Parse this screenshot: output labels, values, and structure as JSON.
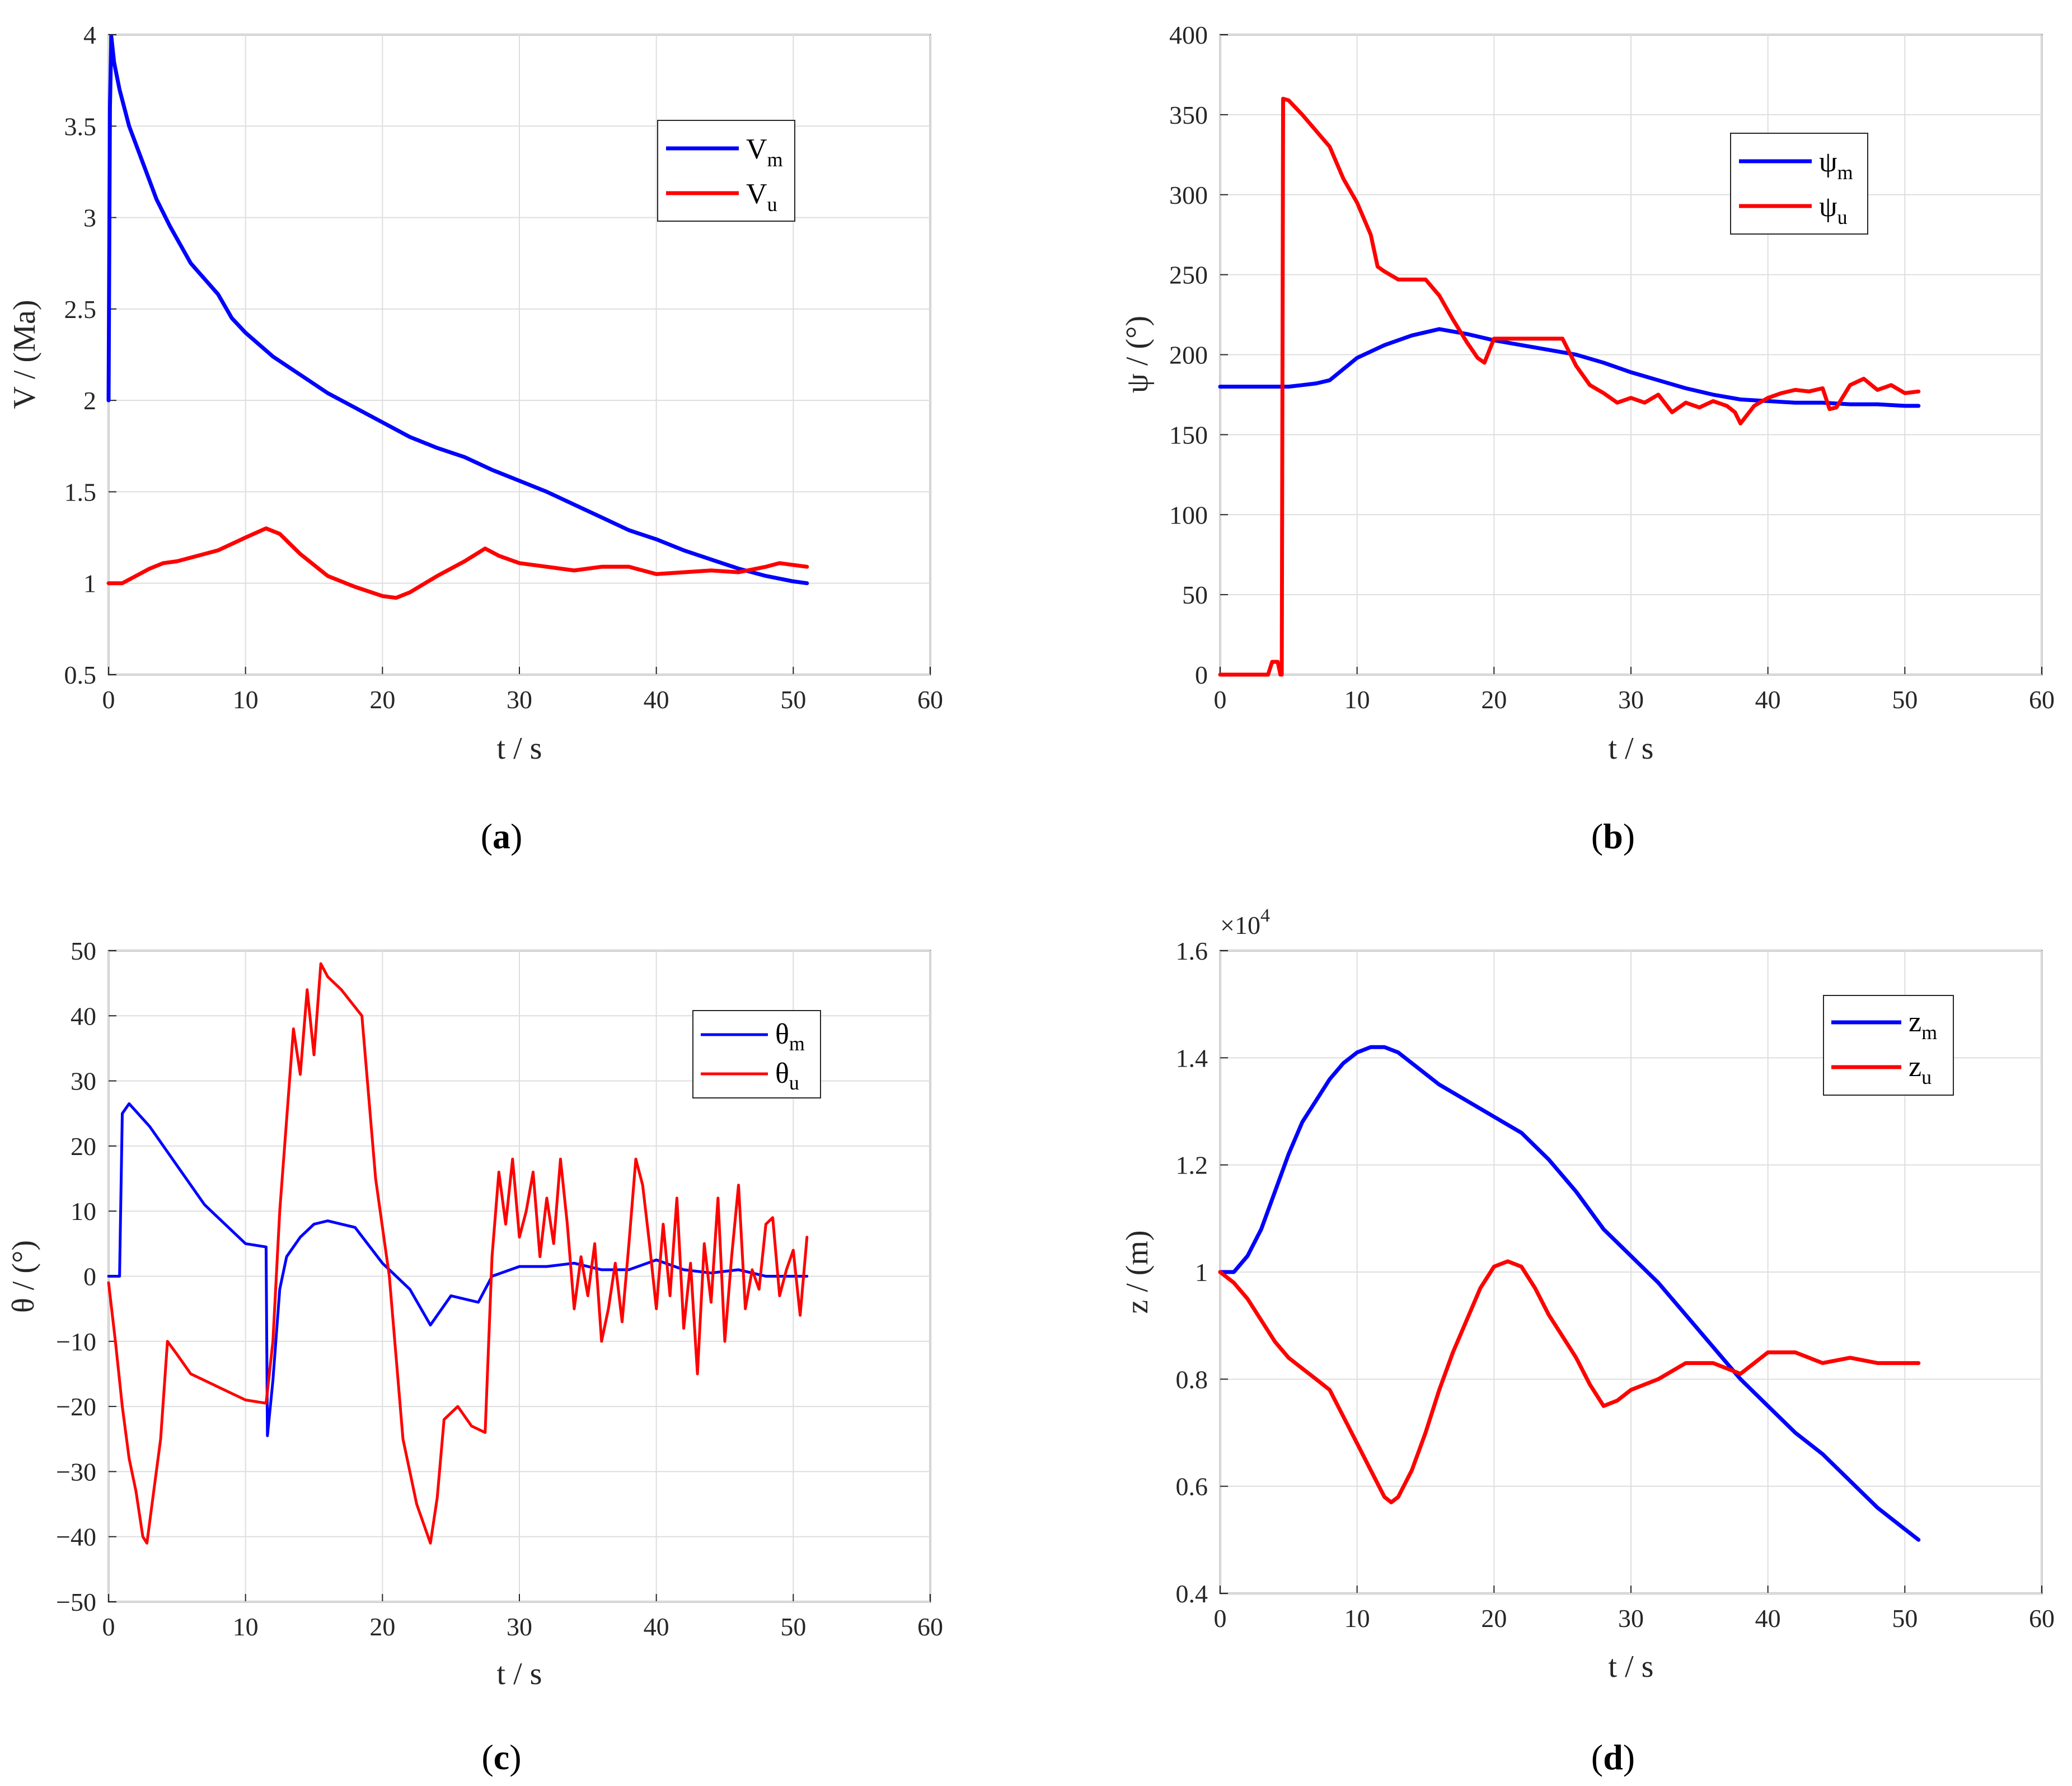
{
  "chart_data": [
    {
      "id": "a",
      "type": "line",
      "caption": "a",
      "xlabel": "t / s",
      "ylabel": "V / (Ma)",
      "xlim": [
        0,
        60
      ],
      "ylim": [
        0.5,
        4
      ],
      "xticks": [
        "0",
        "10",
        "20",
        "30",
        "40",
        "50",
        "60"
      ],
      "yticks": [
        "0.5",
        "1",
        "1.5",
        "2",
        "2.5",
        "3",
        "3.5",
        "4"
      ],
      "grid": true,
      "legend_position": "top-right",
      "series": [
        {
          "name": "V",
          "sub": "m",
          "color": "#0000ff",
          "x": [
            0,
            0.1,
            0.2,
            0.4,
            0.8,
            1.5,
            2.5,
            3.5,
            4.5,
            6,
            8,
            9,
            10,
            12,
            14,
            16,
            18,
            20,
            22,
            24,
            26,
            28,
            30,
            32,
            34,
            36,
            38,
            40,
            42,
            44,
            46,
            48,
            50,
            51
          ],
          "y": [
            2.0,
            3.6,
            3.99,
            3.85,
            3.7,
            3.5,
            3.3,
            3.1,
            2.95,
            2.75,
            2.58,
            2.45,
            2.37,
            2.24,
            2.14,
            2.04,
            1.96,
            1.88,
            1.8,
            1.74,
            1.69,
            1.62,
            1.56,
            1.5,
            1.43,
            1.36,
            1.29,
            1.24,
            1.18,
            1.13,
            1.08,
            1.04,
            1.01,
            1.0
          ]
        },
        {
          "name": "V",
          "sub": "u",
          "color": "#ff0000",
          "x": [
            0,
            1,
            2,
            3,
            4,
            5,
            6,
            8,
            10,
            11.5,
            12.5,
            14,
            16,
            18,
            20,
            21,
            22,
            24,
            26,
            27.5,
            28.5,
            30,
            32,
            34,
            36,
            38,
            40,
            42,
            44,
            46,
            48,
            49,
            51
          ],
          "y": [
            1.0,
            1.0,
            1.04,
            1.08,
            1.11,
            1.12,
            1.14,
            1.18,
            1.25,
            1.3,
            1.27,
            1.16,
            1.04,
            0.98,
            0.93,
            0.92,
            0.95,
            1.04,
            1.12,
            1.19,
            1.15,
            1.11,
            1.09,
            1.07,
            1.09,
            1.09,
            1.05,
            1.06,
            1.07,
            1.06,
            1.09,
            1.11,
            1.09
          ]
        }
      ]
    },
    {
      "id": "b",
      "type": "line",
      "caption": "b",
      "xlabel": "t / s",
      "ylabel": "ψ / (°)",
      "xlim": [
        0,
        60
      ],
      "ylim": [
        0,
        400
      ],
      "xticks": [
        "0",
        "10",
        "20",
        "30",
        "40",
        "50",
        "60"
      ],
      "yticks": [
        "0",
        "50",
        "100",
        "150",
        "200",
        "250",
        "300",
        "350",
        "400"
      ],
      "grid": true,
      "legend_position": "top-right",
      "series": [
        {
          "name": "ψ",
          "sub": "m",
          "color": "#0000ff",
          "x": [
            0,
            2,
            4,
            5,
            6,
            7,
            8,
            9,
            10,
            12,
            14,
            16,
            18,
            20,
            22,
            24,
            26,
            28,
            30,
            32,
            34,
            36,
            38,
            40,
            42,
            44,
            46,
            48,
            50,
            51
          ],
          "y": [
            180,
            180,
            180,
            180,
            181,
            182,
            184,
            191,
            198,
            206,
            212,
            216,
            213,
            209,
            206,
            203,
            200,
            195,
            189,
            184,
            179,
            175,
            172,
            171,
            170,
            170,
            169,
            169,
            168,
            168
          ]
        },
        {
          "name": "ψ",
          "sub": "u",
          "color": "#ff0000",
          "x": [
            0,
            3.5,
            3.8,
            4.2,
            4.4,
            4.5,
            4.6,
            5,
            6,
            7,
            8,
            9,
            10,
            11,
            11.5,
            12,
            13,
            14,
            15,
            16,
            17,
            18,
            18.8,
            19.3,
            20,
            22,
            24,
            25,
            26,
            27,
            28,
            29,
            30,
            31,
            32,
            33,
            34,
            35,
            36,
            37,
            37.6,
            38,
            39,
            40,
            41,
            42,
            43,
            44,
            44.5,
            45,
            46,
            47,
            48,
            49,
            50,
            51
          ],
          "y": [
            0,
            0,
            8,
            8,
            0,
            0,
            360,
            359,
            350,
            340,
            330,
            310,
            295,
            275,
            255,
            252,
            247,
            247,
            247,
            237,
            222,
            208,
            198,
            195,
            210,
            210,
            210,
            210,
            193,
            181,
            176,
            170,
            173,
            170,
            175,
            164,
            170,
            167,
            171,
            168,
            164,
            157,
            168,
            173,
            176,
            178,
            177,
            179,
            166,
            167,
            181,
            185,
            178,
            181,
            176,
            177
          ]
        }
      ]
    },
    {
      "id": "c",
      "type": "line",
      "caption": "c",
      "xlabel": "t / s",
      "ylabel": "θ / (°)",
      "xlim": [
        0,
        60
      ],
      "ylim": [
        -50,
        50
      ],
      "xticks": [
        "0",
        "10",
        "20",
        "30",
        "40",
        "50",
        "60"
      ],
      "yticks": [
        "−50",
        "−40",
        "−30",
        "−20",
        "−10",
        "0",
        "10",
        "20",
        "30",
        "40",
        "50"
      ],
      "grid": true,
      "legend_position": "top-right",
      "series": [
        {
          "name": "θ",
          "sub": "m",
          "color": "#0000ff",
          "x": [
            0,
            0.5,
            0.8,
            1,
            1.5,
            3,
            5,
            7,
            9,
            10,
            11.5,
            11.6,
            12,
            12.5,
            13,
            14,
            15,
            16,
            18,
            20,
            22,
            23.5,
            25,
            27,
            28,
            30,
            32,
            34,
            36,
            38,
            40,
            42,
            44,
            46,
            48,
            50,
            51
          ],
          "y": [
            0,
            0,
            0,
            25,
            26.5,
            23,
            17,
            11,
            7,
            5,
            4.5,
            -24.5,
            -16,
            -2,
            3,
            6,
            8,
            8.5,
            7.5,
            2,
            -2,
            -7.5,
            -3,
            -4,
            0,
            1.5,
            1.5,
            2,
            1,
            1,
            2.5,
            1,
            0.5,
            1,
            0,
            0,
            0
          ]
        },
        {
          "name": "θ",
          "sub": "u",
          "color": "#ff0000",
          "x": [
            0,
            0.5,
            1,
            1.5,
            2,
            2.5,
            2.8,
            3.3,
            3.8,
            4.3,
            5,
            6,
            8,
            10,
            11.5,
            12,
            12.5,
            13.5,
            14,
            14.5,
            15,
            15.5,
            16,
            17,
            18.5,
            19.5,
            20.5,
            21.5,
            22.5,
            23.5,
            24,
            24.5,
            25.5,
            26.5,
            27.5,
            28,
            28.5,
            29,
            29.5,
            30,
            30.5,
            31,
            31.5,
            32,
            32.5,
            33,
            33.5,
            34,
            34.5,
            35,
            35.5,
            36,
            36.5,
            37,
            37.5,
            38,
            38.5,
            39,
            39.5,
            40,
            40.5,
            41,
            41.5,
            42,
            42.5,
            43,
            43.5,
            44,
            44.5,
            45,
            45.5,
            46,
            46.5,
            47,
            47.5,
            48,
            48.5,
            49,
            49.5,
            50,
            50.5,
            51
          ],
          "y": [
            -1,
            -10,
            -20,
            -28,
            -33,
            -40,
            -41,
            -33,
            -25,
            -10,
            -12,
            -15,
            -17,
            -19,
            -19.5,
            -10,
            10,
            38,
            31,
            44,
            34,
            48,
            46,
            44,
            40,
            15,
            0,
            -25,
            -35,
            -41,
            -34,
            -22,
            -20,
            -23,
            -24,
            3,
            16,
            8,
            18,
            6,
            10,
            16,
            3,
            12,
            5,
            18,
            8,
            -5,
            3,
            -3,
            5,
            -10,
            -5,
            2,
            -7,
            5,
            18,
            14,
            5,
            -5,
            8,
            -3,
            12,
            -8,
            2,
            -15,
            5,
            -4,
            12,
            -10,
            3,
            14,
            -5,
            1,
            -2,
            8,
            9,
            -3,
            1,
            4,
            -6,
            6
          ]
        }
      ]
    },
    {
      "id": "d",
      "type": "line",
      "caption": "d",
      "xlabel": "t / s",
      "ylabel": "z / (m)",
      "exponent_label": "×10",
      "exponent_power": "4",
      "xlim": [
        0,
        60
      ],
      "ylim": [
        0.4,
        1.6
      ],
      "xticks": [
        "0",
        "10",
        "20",
        "30",
        "40",
        "50",
        "60"
      ],
      "yticks": [
        "0.4",
        "0.6",
        "0.8",
        "1",
        "1.2",
        "1.4",
        "1.6"
      ],
      "grid": true,
      "legend_position": "top-right",
      "series": [
        {
          "name": "z",
          "sub": "m",
          "color": "#0000ff",
          "x": [
            0,
            1,
            2,
            3,
            4,
            5,
            6,
            7,
            8,
            9,
            10,
            11,
            12,
            13,
            14,
            16,
            18,
            20,
            22,
            24,
            26,
            28,
            30,
            32,
            34,
            36,
            38,
            40,
            42,
            44,
            46,
            48,
            50,
            51
          ],
          "y": [
            1.0,
            1.0,
            1.03,
            1.08,
            1.15,
            1.22,
            1.28,
            1.32,
            1.36,
            1.39,
            1.41,
            1.42,
            1.42,
            1.41,
            1.39,
            1.35,
            1.32,
            1.29,
            1.26,
            1.21,
            1.15,
            1.08,
            1.03,
            0.98,
            0.92,
            0.86,
            0.8,
            0.75,
            0.7,
            0.66,
            0.61,
            0.56,
            0.52,
            0.5
          ]
        },
        {
          "name": "z",
          "sub": "u",
          "color": "#ff0000",
          "x": [
            0,
            1,
            2,
            3,
            4,
            5,
            6,
            7,
            8,
            9,
            10,
            11,
            12,
            12.5,
            13,
            14,
            15,
            16,
            17,
            18,
            19,
            20,
            21,
            22,
            23,
            24,
            25,
            26,
            27,
            28,
            29,
            30,
            32,
            34,
            36,
            38,
            39,
            40,
            42,
            44,
            46,
            48,
            50,
            51
          ],
          "y": [
            1.0,
            0.98,
            0.95,
            0.91,
            0.87,
            0.84,
            0.82,
            0.8,
            0.78,
            0.73,
            0.68,
            0.63,
            0.58,
            0.57,
            0.58,
            0.63,
            0.7,
            0.78,
            0.85,
            0.91,
            0.97,
            1.01,
            1.02,
            1.01,
            0.97,
            0.92,
            0.88,
            0.84,
            0.79,
            0.75,
            0.76,
            0.78,
            0.8,
            0.83,
            0.83,
            0.81,
            0.83,
            0.85,
            0.85,
            0.83,
            0.84,
            0.83,
            0.83,
            0.83
          ]
        }
      ]
    }
  ]
}
